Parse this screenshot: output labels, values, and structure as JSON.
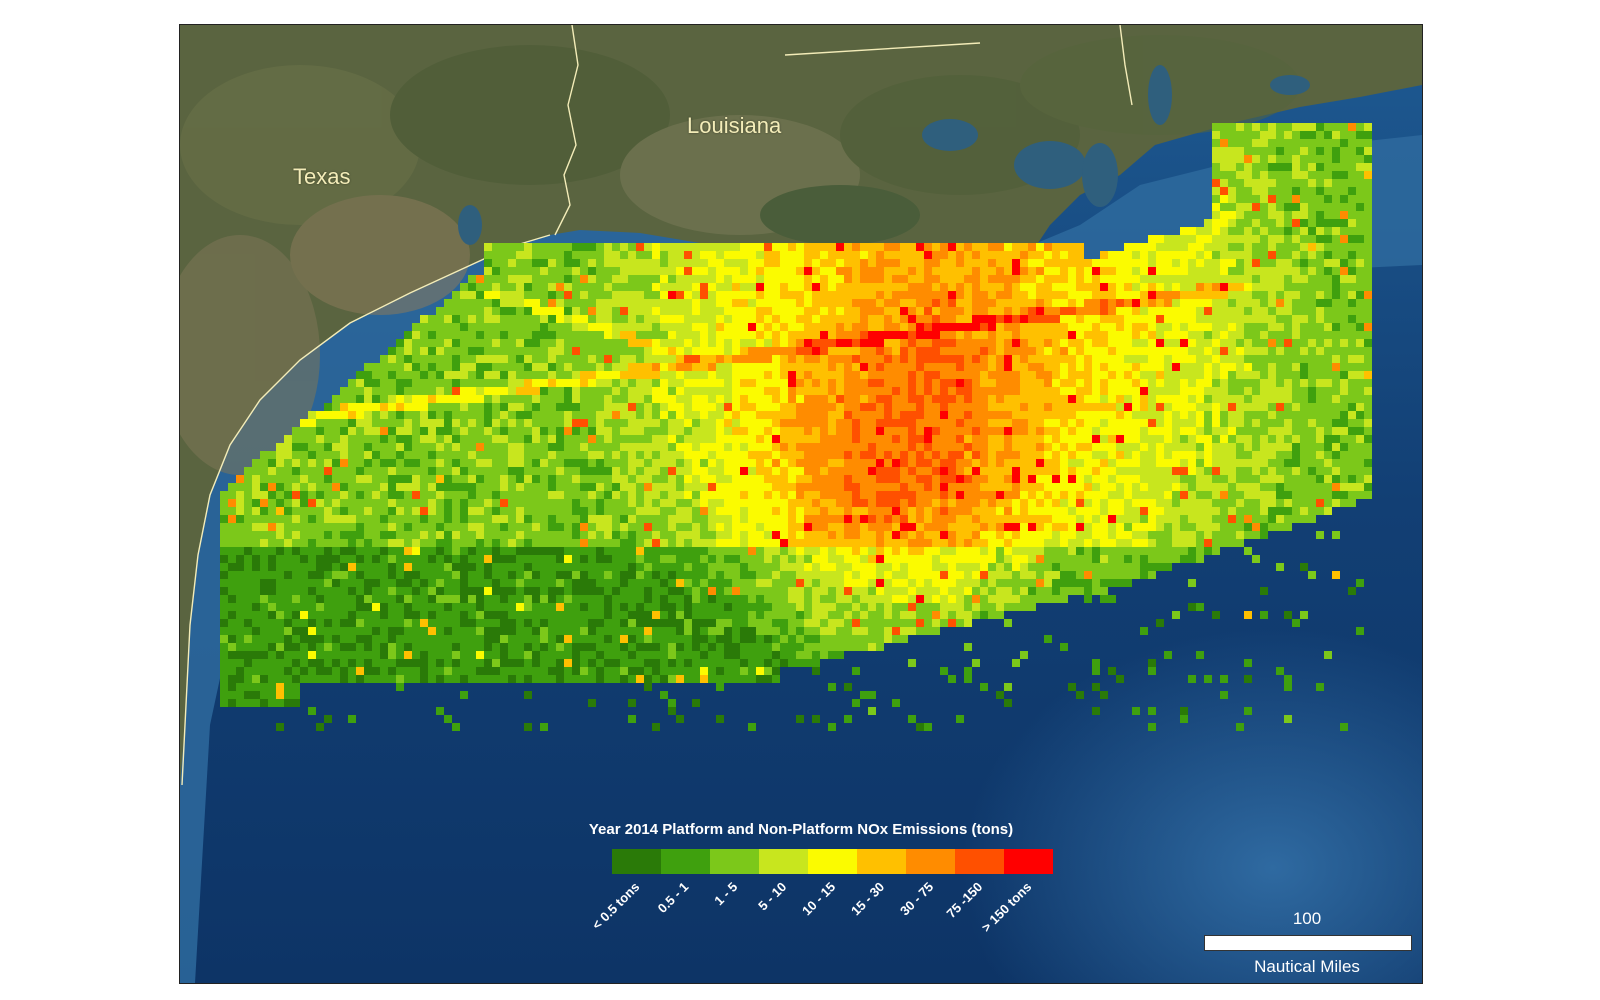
{
  "map": {
    "labels": {
      "texas": "Texas",
      "louisiana": "Louisiana"
    }
  },
  "legend": {
    "title": "Year 2014 Platform and Non-Platform NOx Emissions (tons)",
    "classes": [
      {
        "label": "< 0.5 tons",
        "color": "#2a7a08"
      },
      {
        "label": "0.5 - 1",
        "color": "#3fa00e"
      },
      {
        "label": "1 - 5",
        "color": "#7cc81a"
      },
      {
        "label": "5 - 10",
        "color": "#c8e61e"
      },
      {
        "label": "10 - 15",
        "color": "#fbfb00"
      },
      {
        "label": "15 - 30",
        "color": "#ffc000"
      },
      {
        "label": "30 - 75",
        "color": "#ff8c00"
      },
      {
        "label": "75 -150",
        "color": "#ff5000"
      },
      {
        "label": "> 150 tons",
        "color": "#ff0000"
      }
    ]
  },
  "scale": {
    "value": "100",
    "unit": "Nautical Miles"
  },
  "colors": {
    "land": "#4c5a3a",
    "deep_water": "#0f3c6e",
    "shelf_water": "#3d78a8",
    "state_border": "#f3ecb8"
  }
}
